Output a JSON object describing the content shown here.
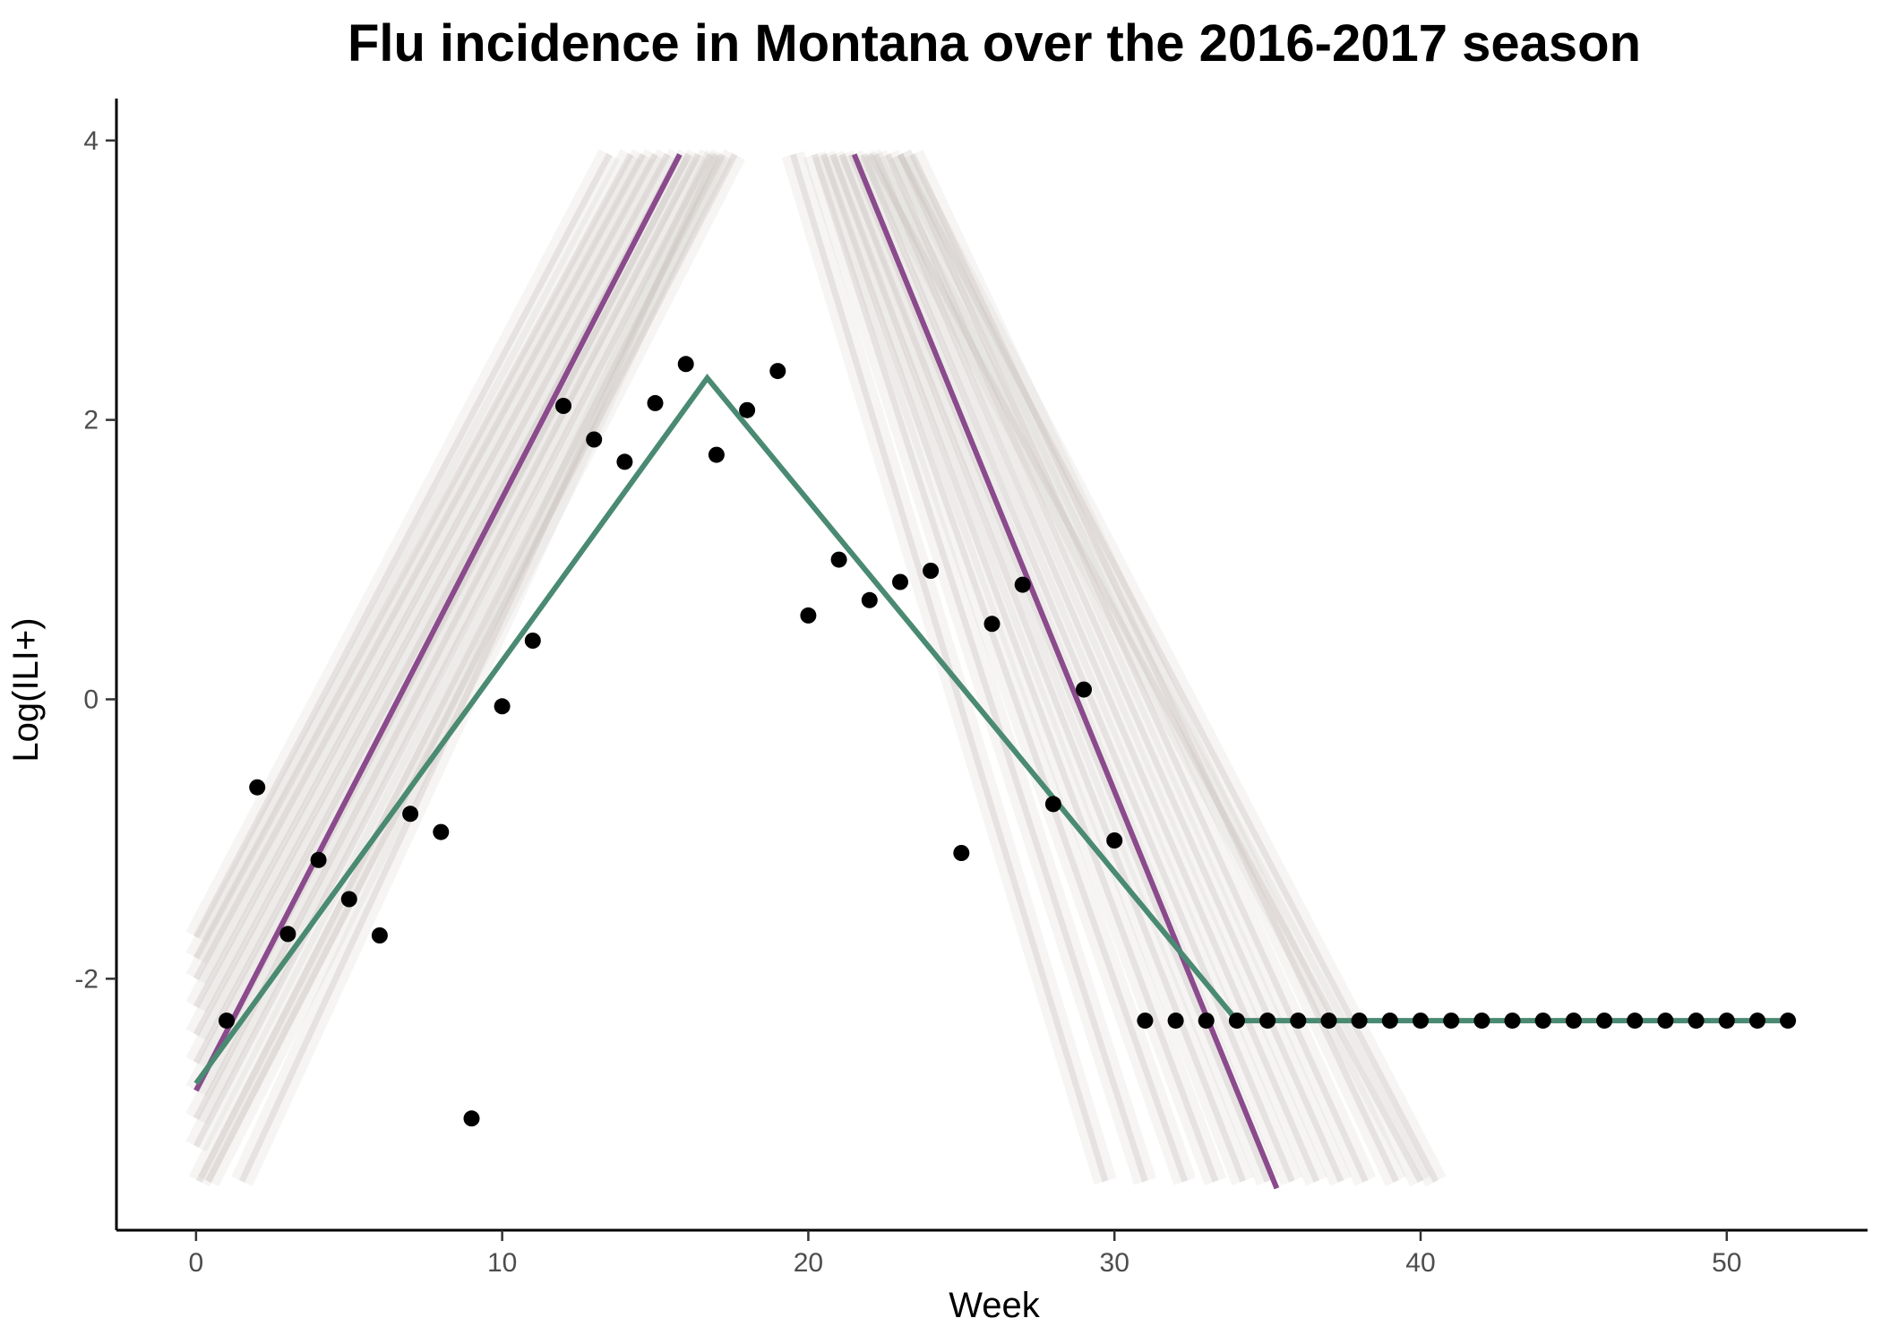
{
  "chart_data": {
    "type": "line",
    "title": "Flu incidence in Montana over the 2016-2017 season",
    "xlabel": "Week",
    "ylabel": "Log(ILI+)",
    "xlim": [
      -2.6,
      54.6
    ],
    "ylim": [
      -3.8,
      4.3
    ],
    "x_ticks": [
      0,
      10,
      20,
      30,
      40,
      50
    ],
    "x_tick_labels": [
      "0",
      "10",
      "20",
      "30",
      "40",
      "50"
    ],
    "y_ticks": [
      -2,
      0,
      2,
      4
    ],
    "y_tick_labels": [
      "-2",
      "0",
      "2",
      "4"
    ],
    "grid": false,
    "legend": "none",
    "colors": {
      "points": "#000000",
      "fit_line": "#4a8a72",
      "sample_lines": "#c8c0bc",
      "purple_line": "#8a4a8c"
    },
    "observed": {
      "x": [
        1,
        2,
        3,
        4,
        5,
        6,
        7,
        8,
        9,
        10,
        11,
        12,
        13,
        14,
        15,
        16,
        17,
        18,
        19,
        20,
        21,
        22,
        23,
        24,
        25,
        26,
        27,
        28,
        29,
        30,
        31,
        32,
        33,
        34,
        35,
        36,
        37,
        38,
        39,
        40,
        41,
        42,
        43,
        44,
        45,
        46,
        47,
        48,
        49,
        50,
        51,
        52
      ],
      "y": [
        -2.3,
        -0.63,
        -1.68,
        -1.15,
        -1.43,
        -1.69,
        -0.82,
        -0.95,
        -3.0,
        -0.05,
        0.42,
        2.1,
        1.86,
        1.7,
        2.12,
        2.4,
        1.75,
        2.07,
        2.35,
        0.6,
        1.0,
        0.71,
        0.84,
        0.92,
        -1.1,
        0.54,
        0.82,
        -0.75,
        0.07,
        -1.01,
        -2.3,
        -2.3,
        -2.3,
        -2.3,
        -2.3,
        -2.3,
        -2.3,
        -2.3,
        -2.3,
        -2.3,
        -2.3,
        -2.3,
        -2.3,
        -2.3,
        -2.3,
        -2.3,
        -2.3,
        -2.3,
        -2.3,
        -2.3,
        -2.3,
        -2.3
      ]
    },
    "fit_line": {
      "x": [
        0,
        16.7,
        34,
        52
      ],
      "y": [
        -2.75,
        2.3,
        -2.3,
        -2.3
      ]
    },
    "purple_lines": [
      {
        "x": [
          0,
          15.8
        ],
        "y": [
          -2.8,
          3.9
        ]
      },
      {
        "x": [
          21.5,
          35.3
        ],
        "y": [
          3.9,
          -3.5
        ]
      }
    ],
    "sample_lines_rise": [
      {
        "x": [
          0,
          13.5
        ],
        "y": [
          -1.7,
          3.9
        ]
      },
      {
        "x": [
          0,
          14.2
        ],
        "y": [
          -1.85,
          3.9
        ]
      },
      {
        "x": [
          0,
          14.6
        ],
        "y": [
          -2.0,
          3.9
        ]
      },
      {
        "x": [
          0,
          15.0
        ],
        "y": [
          -2.2,
          3.9
        ]
      },
      {
        "x": [
          0,
          15.4
        ],
        "y": [
          -2.4,
          3.9
        ]
      },
      {
        "x": [
          0,
          15.8
        ],
        "y": [
          -2.6,
          3.9
        ]
      },
      {
        "x": [
          0,
          16.1
        ],
        "y": [
          -2.8,
          3.9
        ]
      },
      {
        "x": [
          0,
          16.4
        ],
        "y": [
          -3.0,
          3.9
        ]
      },
      {
        "x": [
          0,
          16.8
        ],
        "y": [
          -3.2,
          3.9
        ]
      },
      {
        "x": [
          0.1,
          17.2
        ],
        "y": [
          -3.45,
          3.9
        ]
      },
      {
        "x": [
          0.4,
          17.6
        ],
        "y": [
          -3.45,
          3.9
        ]
      },
      {
        "x": [
          1.5,
          17.0
        ],
        "y": [
          -3.45,
          3.9
        ]
      }
    ],
    "sample_lines_fall": [
      {
        "x": [
          19.5,
          29.7
        ],
        "y": [
          3.9,
          -3.45
        ]
      },
      {
        "x": [
          20.2,
          31.0
        ],
        "y": [
          3.9,
          -3.45
        ]
      },
      {
        "x": [
          20.5,
          32.3
        ],
        "y": [
          3.9,
          -3.45
        ]
      },
      {
        "x": [
          20.8,
          33.3
        ],
        "y": [
          3.9,
          -3.45
        ]
      },
      {
        "x": [
          21.1,
          34.2
        ],
        "y": [
          3.9,
          -3.45
        ]
      },
      {
        "x": [
          21.4,
          35.0
        ],
        "y": [
          3.9,
          -3.45
        ]
      },
      {
        "x": [
          21.8,
          35.8
        ],
        "y": [
          3.9,
          -3.45
        ]
      },
      {
        "x": [
          22.2,
          36.6
        ],
        "y": [
          3.9,
          -3.45
        ]
      },
      {
        "x": [
          22.6,
          37.4
        ],
        "y": [
          3.9,
          -3.45
        ]
      },
      {
        "x": [
          23.0,
          38.2
        ],
        "y": [
          3.9,
          -3.45
        ]
      },
      {
        "x": [
          23.4,
          39.2
        ],
        "y": [
          3.9,
          -3.45
        ]
      },
      {
        "x": [
          23.0,
          40.5
        ],
        "y": [
          3.9,
          -3.45
        ]
      },
      {
        "x": [
          22.0,
          40.0
        ],
        "y": [
          3.9,
          -3.45
        ]
      }
    ]
  }
}
